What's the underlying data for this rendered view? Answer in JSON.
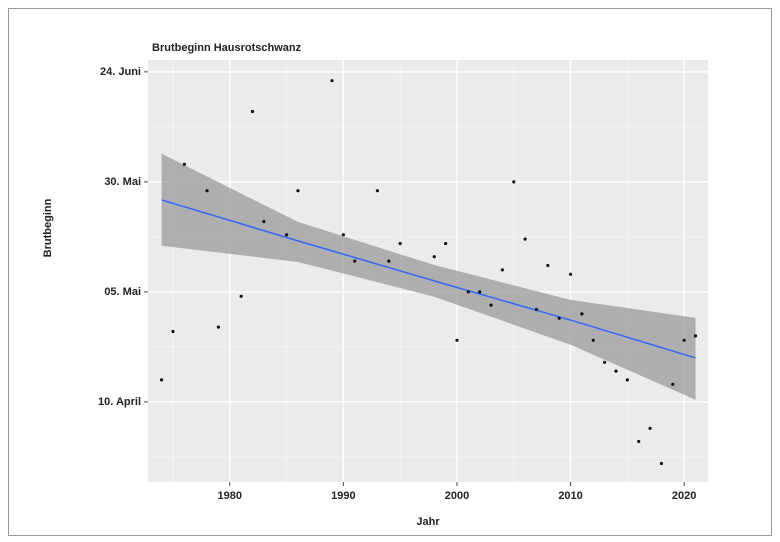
{
  "chart_data": {
    "type": "scatter",
    "title": "Brutbeginn Hausrotschwanz",
    "xlabel": "Jahr",
    "ylabel": "Brutbeginn",
    "x": [
      1974,
      1975,
      1976,
      1978,
      1979,
      1981,
      1982,
      1983,
      1985,
      1986,
      1989,
      1990,
      1991,
      1993,
      1994,
      1995,
      1998,
      1999,
      2000,
      2001,
      2002,
      2003,
      2004,
      2005,
      2006,
      2007,
      2008,
      2009,
      2010,
      2011,
      2012,
      2013,
      2014,
      2015,
      2016,
      2017,
      2018,
      2019,
      2020,
      2021
    ],
    "values": [
      105,
      116,
      154,
      148,
      117,
      124,
      166,
      141,
      138,
      148,
      173,
      138,
      132,
      148,
      132,
      136,
      133,
      136,
      114,
      125,
      125,
      122,
      130,
      150,
      137,
      121,
      131,
      119,
      129,
      120,
      114,
      109,
      107,
      105,
      91,
      94,
      86,
      104,
      114,
      115
    ],
    "color": "#111111",
    "fit": {
      "x": [
        1974,
        1986,
        1998,
        2010,
        2021
      ],
      "values": [
        145.9,
        136.6,
        127.5,
        118.6,
        110
      ],
      "lower": [
        135.5,
        131.8,
        123.9,
        113,
        100.5
      ],
      "upper": [
        156.4,
        140.9,
        131.1,
        123.2,
        119.1
      ],
      "color": "#3366ff",
      "band_color": "#9a9a9a"
    },
    "xlim": [
      1972.8,
      2022.1
    ],
    "ylim": [
      81.8,
      177.7
    ],
    "xticks": [
      1980,
      1990,
      2000,
      2010,
      2020
    ],
    "yticks": [
      {
        "value": 100,
        "label": "10. April"
      },
      {
        "value": 125,
        "label": "05. Mai"
      },
      {
        "value": 150,
        "label": "30. Mai"
      },
      {
        "value": 175,
        "label": "24. Juni"
      }
    ],
    "grid": true
  }
}
